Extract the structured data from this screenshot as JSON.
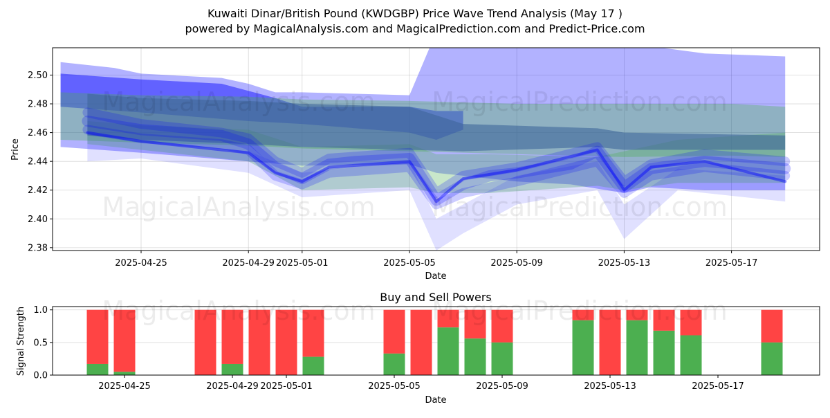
{
  "title_line1": "Kuwaiti Dinar/British Pound (KWDGBP) Price Wave Trend Analysis (May 17 )",
  "title_line2": "powered by MagicalAnalysis.com and MagicalPrediction.com and Predict-Price.com",
  "watermarks": [
    "MagicalAnalysis.com",
    "MagicalPrediction.com"
  ],
  "colors": {
    "buy": "#4caf50",
    "sell": "#ff4444",
    "blue_band": "#0000ff",
    "green_band": "#4caf50"
  },
  "chart_data": [
    {
      "type": "area",
      "xlabel": "Date",
      "ylabel": "Price",
      "ylim": [
        2.378,
        2.519
      ],
      "y_ticks": [
        "2.38",
        "2.40",
        "2.42",
        "2.44",
        "2.46",
        "2.48",
        "2.50"
      ],
      "x_ticks": [
        "2025-04-25",
        "2025-04-29",
        "2025-05-01",
        "2025-05-05",
        "2025-05-09",
        "2025-05-13",
        "2025-05-17"
      ],
      "grid": true,
      "series": [
        {
          "color": "blue",
          "opacity": 0.3,
          "upper": [
            [
              "2025-04-22",
              2.509
            ],
            [
              "2025-04-24",
              2.505
            ],
            [
              "2025-04-25",
              2.501
            ],
            [
              "2025-04-28",
              2.498
            ],
            [
              "2025-04-29",
              2.494
            ],
            [
              "2025-04-30",
              2.488
            ],
            [
              "2025-05-01",
              2.488
            ],
            [
              "2025-05-03",
              2.487
            ],
            [
              "2025-05-05",
              2.486
            ],
            [
              "2025-05-06",
              2.53
            ],
            [
              "2025-05-07",
              2.53
            ],
            [
              "2025-05-08",
              2.53
            ],
            [
              "2025-05-09",
              2.53
            ],
            [
              "2025-05-11",
              2.53
            ],
            [
              "2025-05-14",
              2.52
            ],
            [
              "2025-05-16",
              2.515
            ],
            [
              "2025-05-19",
              2.513
            ]
          ],
          "lower": [
            [
              "2025-05-19",
              2.42
            ],
            [
              "2025-05-16",
              2.42
            ],
            [
              "2025-05-14",
              2.422
            ],
            [
              "2025-05-13",
              2.418
            ],
            [
              "2025-05-11",
              2.424
            ],
            [
              "2025-05-09",
              2.426
            ],
            [
              "2025-05-07",
              2.43
            ],
            [
              "2025-05-06",
              2.432
            ],
            [
              "2025-05-05",
              2.438
            ],
            [
              "2025-05-01",
              2.437
            ],
            [
              "2025-04-29",
              2.44
            ],
            [
              "2025-04-25",
              2.446
            ],
            [
              "2025-04-22",
              2.45
            ]
          ]
        },
        {
          "color": "blue",
          "opacity": 0.45,
          "upper": [
            [
              "2025-04-22",
              2.501
            ],
            [
              "2025-04-25",
              2.497
            ],
            [
              "2025-04-28",
              2.494
            ],
            [
              "2025-04-30",
              2.484
            ],
            [
              "2025-05-01",
              2.478
            ],
            [
              "2025-05-05",
              2.478
            ],
            [
              "2025-05-06",
              2.475
            ],
            [
              "2025-05-07",
              2.475
            ]
          ],
          "lower": [
            [
              "2025-05-07",
              2.462
            ],
            [
              "2025-05-06",
              2.455
            ],
            [
              "2025-05-05",
              2.46
            ],
            [
              "2025-05-01",
              2.466
            ],
            [
              "2025-04-29",
              2.468
            ],
            [
              "2025-04-25",
              2.474
            ],
            [
              "2025-04-22",
              2.478
            ]
          ]
        },
        {
          "color": "green",
          "opacity": 0.35,
          "upper": [
            [
              "2025-04-22",
              2.488
            ],
            [
              "2025-04-25",
              2.486
            ],
            [
              "2025-04-29",
              2.485
            ],
            [
              "2025-05-01",
              2.483
            ],
            [
              "2025-05-05",
              2.482
            ],
            [
              "2025-05-09",
              2.48
            ],
            [
              "2025-05-13",
              2.48
            ],
            [
              "2025-05-17",
              2.48
            ],
            [
              "2025-05-19",
              2.478
            ]
          ],
          "lower": [
            [
              "2025-05-19",
              2.443
            ],
            [
              "2025-05-17",
              2.444
            ],
            [
              "2025-05-13",
              2.443
            ],
            [
              "2025-05-09",
              2.445
            ],
            [
              "2025-05-05",
              2.447
            ],
            [
              "2025-05-01",
              2.449
            ],
            [
              "2025-04-29",
              2.451
            ],
            [
              "2025-04-25",
              2.453
            ],
            [
              "2025-04-22",
              2.455
            ]
          ]
        },
        {
          "color": "green",
          "opacity": 0.3,
          "upper": [
            [
              "2025-04-23",
              2.468
            ],
            [
              "2025-04-25",
              2.465
            ],
            [
              "2025-04-29",
              2.462
            ],
            [
              "2025-05-01",
              2.45
            ],
            [
              "2025-05-05",
              2.452
            ],
            [
              "2025-05-06",
              2.445
            ],
            [
              "2025-05-08",
              2.445
            ],
            [
              "2025-05-12",
              2.443
            ],
            [
              "2025-05-15",
              2.455
            ],
            [
              "2025-05-19",
              2.46
            ]
          ],
          "lower": [
            [
              "2025-05-19",
              2.425
            ],
            [
              "2025-05-15",
              2.425
            ],
            [
              "2025-05-13",
              2.42
            ],
            [
              "2025-05-12",
              2.423
            ],
            [
              "2025-05-08",
              2.418
            ],
            [
              "2025-05-06",
              2.418
            ],
            [
              "2025-05-05",
              2.422
            ],
            [
              "2025-05-01",
              2.42
            ],
            [
              "2025-04-29",
              2.44
            ],
            [
              "2025-04-25",
              2.448
            ],
            [
              "2025-04-23",
              2.452
            ]
          ]
        },
        {
          "color": "slate",
          "opacity": 0.6,
          "upper": [
            [
              "2025-04-23",
              2.487
            ],
            [
              "2025-04-25",
              2.484
            ],
            [
              "2025-04-29",
              2.482
            ],
            [
              "2025-05-01",
              2.48
            ],
            [
              "2025-05-05",
              2.478
            ],
            [
              "2025-05-07",
              2.466
            ],
            [
              "2025-05-12",
              2.463
            ],
            [
              "2025-05-13",
              2.46
            ],
            [
              "2025-05-19",
              2.458
            ]
          ],
          "lower": [
            [
              "2025-05-19",
              2.448
            ],
            [
              "2025-05-13",
              2.448
            ],
            [
              "2025-05-12",
              2.45
            ],
            [
              "2025-05-07",
              2.447
            ],
            [
              "2025-05-05",
              2.448
            ],
            [
              "2025-05-01",
              2.45
            ],
            [
              "2025-04-29",
              2.452
            ],
            [
              "2025-04-25",
              2.455
            ],
            [
              "2025-04-23",
              2.458
            ]
          ]
        },
        {
          "color": "blue",
          "opacity": 0.12,
          "upper": [
            [
              "2025-04-23",
              2.46
            ],
            [
              "2025-04-25",
              2.455
            ],
            [
              "2025-04-29",
              2.447
            ],
            [
              "2025-05-01",
              2.432
            ],
            [
              "2025-05-05",
              2.44
            ],
            [
              "2025-05-06",
              2.4
            ],
            [
              "2025-05-07",
              2.41
            ],
            [
              "2025-05-09",
              2.43
            ],
            [
              "2025-05-12",
              2.44
            ],
            [
              "2025-05-13",
              2.41
            ],
            [
              "2025-05-15",
              2.435
            ],
            [
              "2025-05-19",
              2.43
            ]
          ],
          "lower": [
            [
              "2025-05-19",
              2.412
            ],
            [
              "2025-05-15",
              2.42
            ],
            [
              "2025-05-13",
              2.386
            ],
            [
              "2025-05-12",
              2.42
            ],
            [
              "2025-05-09",
              2.41
            ],
            [
              "2025-05-07",
              2.39
            ],
            [
              "2025-05-06",
              2.378
            ],
            [
              "2025-05-05",
              2.42
            ],
            [
              "2025-05-01",
              2.415
            ],
            [
              "2025-04-29",
              2.432
            ],
            [
              "2025-04-25",
              2.442
            ],
            [
              "2025-04-23",
              2.44
            ]
          ]
        }
      ],
      "wave_lines": [
        {
          "color": "blue",
          "opacity": 0.22,
          "width": 16,
          "points": [
            [
              "2025-04-23",
              2.468
            ],
            [
              "2025-04-25",
              2.462
            ],
            [
              "2025-04-28",
              2.458
            ],
            [
              "2025-04-29",
              2.452
            ],
            [
              "2025-04-30",
              2.436
            ],
            [
              "2025-05-01",
              2.428
            ],
            [
              "2025-05-02",
              2.438
            ],
            [
              "2025-05-03",
              2.44
            ],
            [
              "2025-05-05",
              2.442
            ],
            [
              "2025-05-06",
              2.413
            ],
            [
              "2025-05-07",
              2.424
            ],
            [
              "2025-05-08",
              2.43
            ],
            [
              "2025-05-09",
              2.432
            ],
            [
              "2025-05-11",
              2.438
            ],
            [
              "2025-05-12",
              2.447
            ],
            [
              "2025-05-13",
              2.422
            ],
            [
              "2025-05-14",
              2.435
            ],
            [
              "2025-05-16",
              2.44
            ],
            [
              "2025-05-19",
              2.435
            ]
          ]
        },
        {
          "color": "blue",
          "opacity": 0.2,
          "width": 14,
          "points": [
            [
              "2025-04-23",
              2.474
            ],
            [
              "2025-04-25",
              2.466
            ],
            [
              "2025-04-28",
              2.46
            ],
            [
              "2025-04-29",
              2.456
            ],
            [
              "2025-04-30",
              2.44
            ],
            [
              "2025-05-01",
              2.432
            ],
            [
              "2025-05-02",
              2.442
            ],
            [
              "2025-05-05",
              2.446
            ],
            [
              "2025-05-06",
              2.418
            ],
            [
              "2025-05-07",
              2.43
            ],
            [
              "2025-05-09",
              2.436
            ],
            [
              "2025-05-12",
              2.45
            ],
            [
              "2025-05-13",
              2.426
            ],
            [
              "2025-05-14",
              2.438
            ],
            [
              "2025-05-16",
              2.445
            ],
            [
              "2025-05-19",
              2.44
            ]
          ]
        },
        {
          "color": "blue",
          "opacity": 0.2,
          "width": 14,
          "points": [
            [
              "2025-04-23",
              2.462
            ],
            [
              "2025-04-25",
              2.456
            ],
            [
              "2025-04-28",
              2.452
            ],
            [
              "2025-04-29",
              2.448
            ],
            [
              "2025-04-30",
              2.43
            ],
            [
              "2025-05-01",
              2.424
            ],
            [
              "2025-05-02",
              2.432
            ],
            [
              "2025-05-05",
              2.436
            ],
            [
              "2025-05-06",
              2.41
            ],
            [
              "2025-05-07",
              2.418
            ],
            [
              "2025-05-09",
              2.426
            ],
            [
              "2025-05-12",
              2.44
            ],
            [
              "2025-05-13",
              2.418
            ],
            [
              "2025-05-14",
              2.43
            ],
            [
              "2025-05-16",
              2.436
            ],
            [
              "2025-05-19",
              2.43
            ]
          ]
        },
        {
          "color": "blue",
          "opacity": 0.45,
          "width": 4,
          "points": [
            [
              "2025-04-23",
              2.46
            ],
            [
              "2025-04-25",
              2.454
            ],
            [
              "2025-04-29",
              2.446
            ],
            [
              "2025-04-30",
              2.432
            ],
            [
              "2025-05-01",
              2.426
            ],
            [
              "2025-05-02",
              2.436
            ],
            [
              "2025-05-05",
              2.44
            ],
            [
              "2025-05-06",
              2.412
            ],
            [
              "2025-05-07",
              2.428
            ],
            [
              "2025-05-09",
              2.434
            ],
            [
              "2025-05-12",
              2.448
            ],
            [
              "2025-05-13",
              2.42
            ],
            [
              "2025-05-14",
              2.436
            ],
            [
              "2025-05-16",
              2.44
            ],
            [
              "2025-05-19",
              2.426
            ]
          ]
        }
      ]
    },
    {
      "type": "bar",
      "title": "Buy and Sell Powers",
      "xlabel": "Date",
      "ylabel": "Signal Strength",
      "ylim": [
        0,
        1.05
      ],
      "y_ticks": [
        "0.0",
        "0.5",
        "1.0"
      ],
      "x_ticks": [
        "2025-04-25",
        "2025-04-29",
        "2025-05-01",
        "2025-05-05",
        "2025-05-09",
        "2025-05-13",
        "2025-05-17"
      ],
      "series": [
        {
          "name": "Buy",
          "color": "#4caf50"
        },
        {
          "name": "Sell",
          "color": "#ff4444"
        }
      ],
      "categories": [
        "2025-04-24",
        "2025-04-25",
        "2025-04-28",
        "2025-04-29",
        "2025-04-30",
        "2025-05-01",
        "2025-05-02",
        "2025-05-05",
        "2025-05-06",
        "2025-05-07",
        "2025-05-08",
        "2025-05-09",
        "2025-05-12",
        "2025-05-13",
        "2025-05-14",
        "2025-05-15",
        "2025-05-16",
        "2025-05-19"
      ],
      "buy_values": [
        0.17,
        0.05,
        0.0,
        0.17,
        0.0,
        0.0,
        0.28,
        0.33,
        0.0,
        0.73,
        0.56,
        0.5,
        0.84,
        0.0,
        0.84,
        0.68,
        0.61,
        0.5
      ],
      "total": 1.0
    }
  ]
}
